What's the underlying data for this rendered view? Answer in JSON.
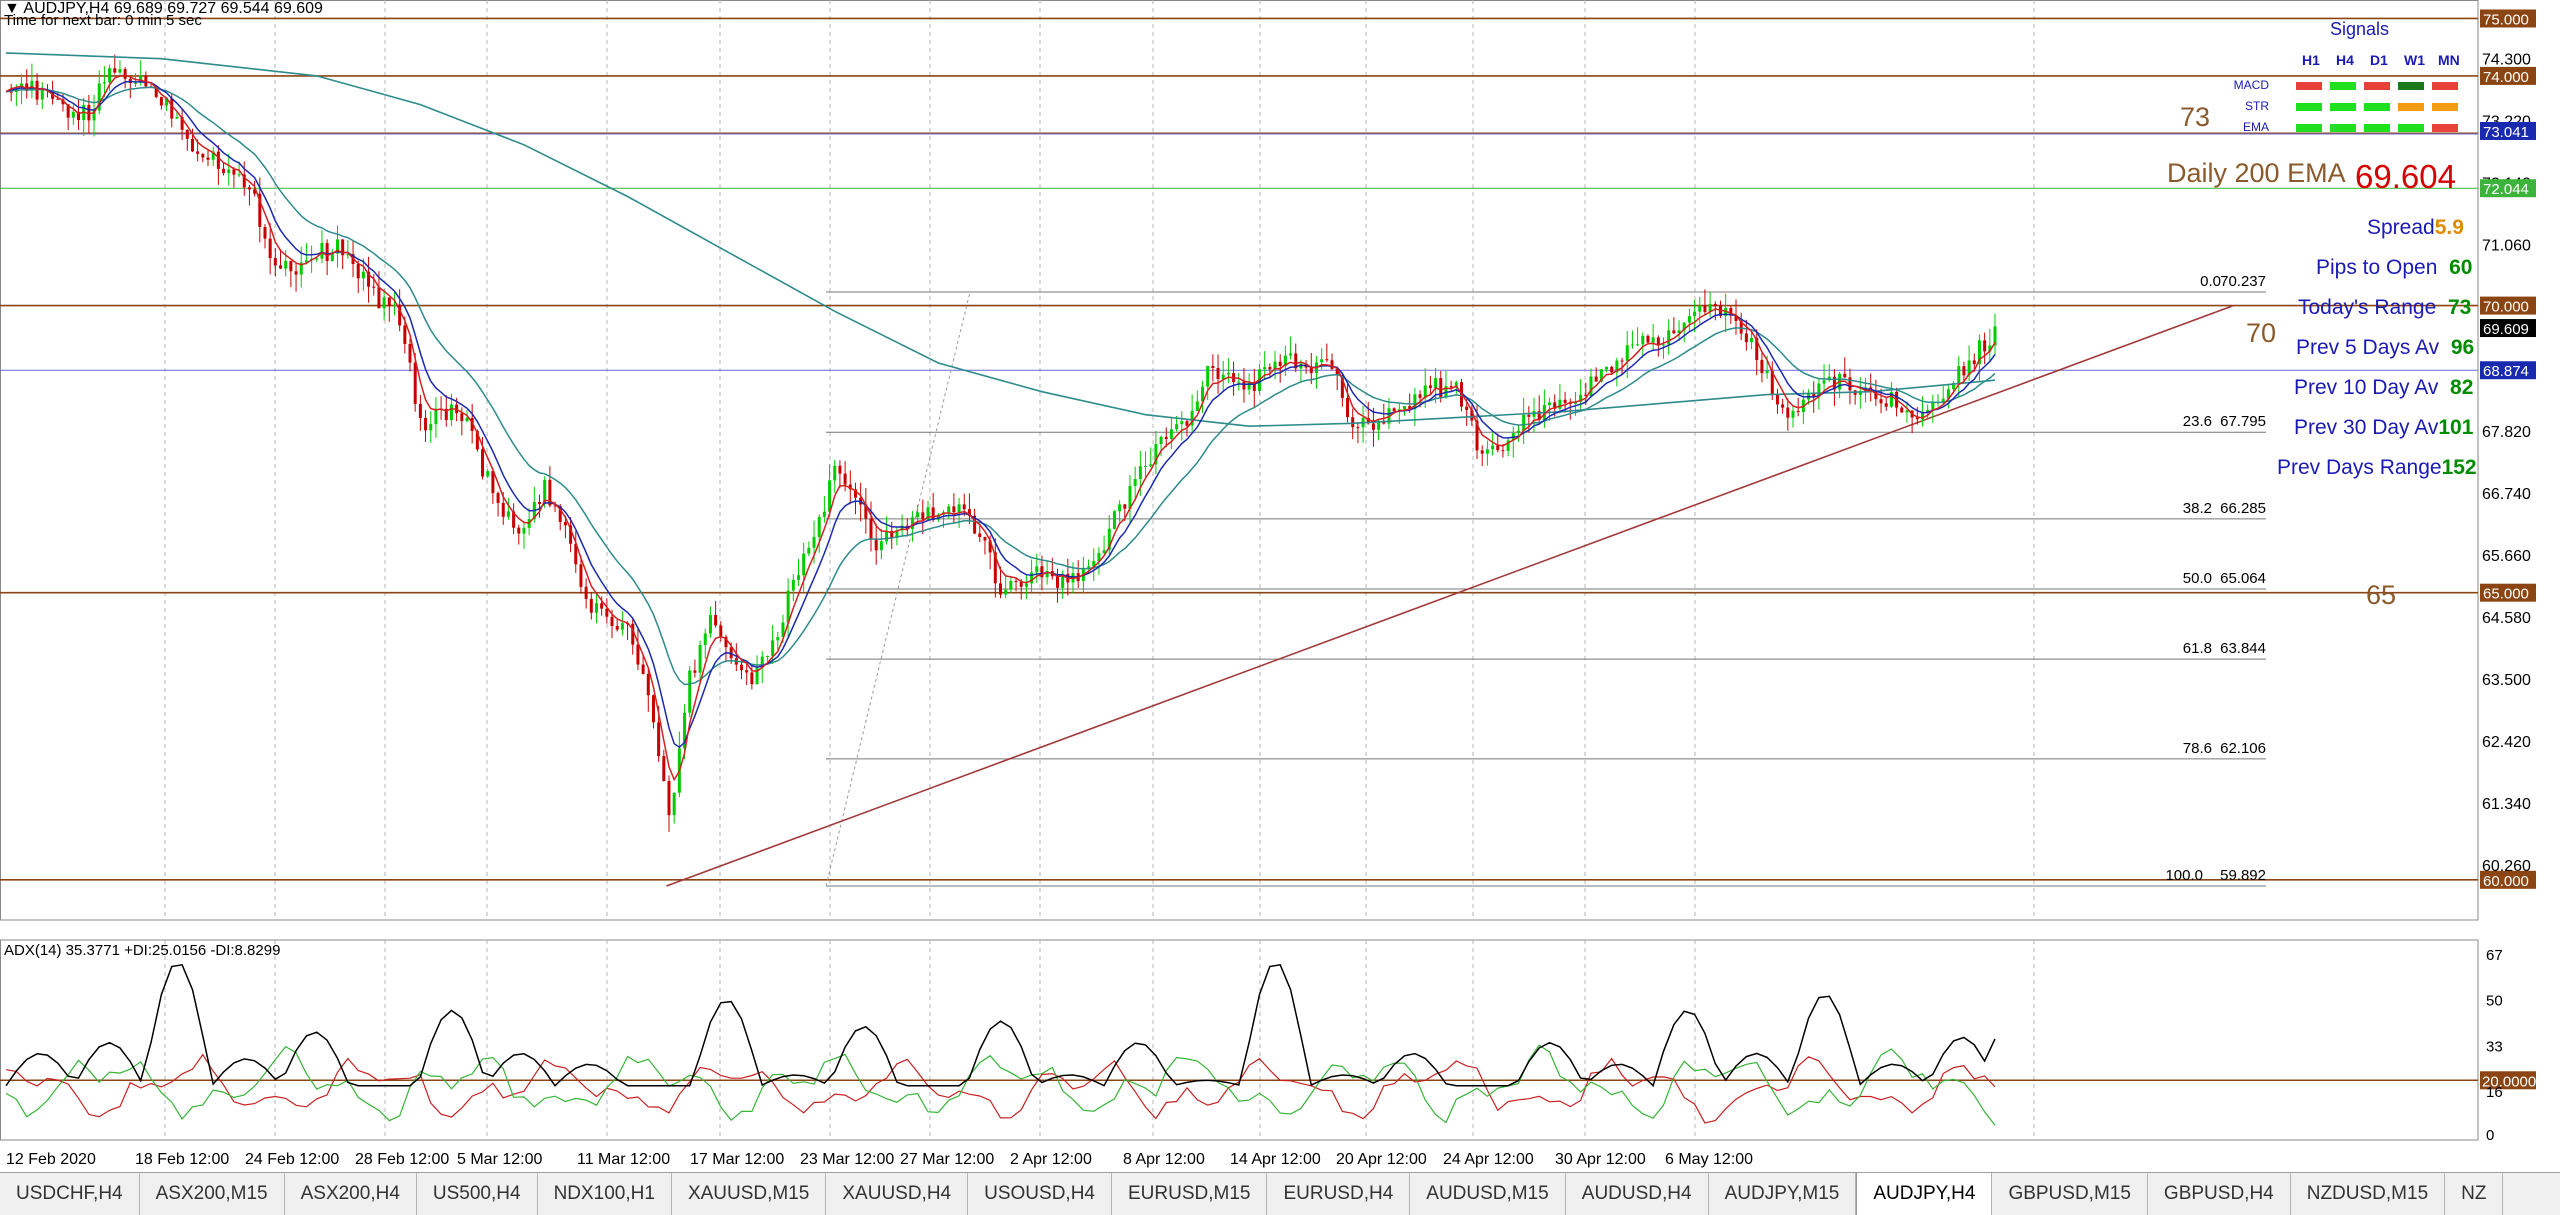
{
  "header": {
    "symbol_line": "AUDJPY,H4  69.689 69.727 69.544 69.609",
    "timer": "Time for next bar: 0 min 5 sec"
  },
  "colors": {
    "level_line": "#8b4513",
    "ema_fast": "#d42020",
    "ema_mid": "#1a2ab0",
    "ema_slow": "#2e8b8b",
    "bull": "#00cc00",
    "bear": "#c80000",
    "adx_line": "#000000",
    "pdi_line": "#36b536",
    "mdi_line": "#c82020",
    "label_blue": "#1a1ab4",
    "label_green": "#008c00",
    "label_orange": "#e08a00",
    "label_red": "#d60000",
    "label_brown": "#8b5a2b"
  },
  "signals": {
    "title": "Signals",
    "columns": [
      "H1",
      "H4",
      "D1",
      "W1",
      "MN"
    ],
    "rows": [
      {
        "name": "MACD",
        "cells": [
          "red",
          "green",
          "red",
          "darkgreen",
          "red"
        ]
      },
      {
        "name": "STR",
        "cells": [
          "green",
          "green",
          "green",
          "orange",
          "orange"
        ]
      },
      {
        "name": "EMA",
        "cells": [
          "green",
          "green",
          "green",
          "green",
          "red"
        ]
      }
    ]
  },
  "info_panel": {
    "level_73": "73",
    "ema_label": "Daily 200 EMA",
    "ema_value": "69.604",
    "spread_label": "Spread",
    "spread_value": "5.9",
    "pips_label": "Pips to Open",
    "pips_value": "60",
    "today_label": "Today's Range",
    "today_value": "73",
    "prev5_label": "Prev 5 Days Av",
    "prev5_value": "96",
    "prev10_label": "Prev 10 Day Av",
    "prev10_value": "82",
    "prev30_label": "Prev 30 Day Av",
    "prev30_value": "101",
    "prevdays_label": "Prev Days Range",
    "prevdays_value": "152",
    "level_70": "70",
    "level_65": "65"
  },
  "indicator": {
    "label": "ADX(14) 35.3771 +DI:25.0156 -DI:8.8299"
  },
  "tabs": [
    "USDCHF,H4",
    "ASX200,M15",
    "ASX200,H4",
    "US500,H4",
    "NDX100,H1",
    "XAUUSD,M15",
    "XAUUSD,H4",
    "USOUSD,H4",
    "EURUSD,M15",
    "EURUSD,H4",
    "AUDUSD,M15",
    "AUDUSD,H4",
    "AUDJPY,M15",
    "AUDJPY,H4",
    "GBPUSD,M15",
    "GBPUSD,H4",
    "NZDUSD,M15",
    "NZ"
  ],
  "active_tab": "AUDJPY,H4",
  "chart_data": [
    {
      "type": "candlestick",
      "symbol": "AUDJPY",
      "timeframe": "H4",
      "ylim": [
        59.3,
        75.2
      ],
      "y_ticks": [
        "74.300",
        "73.220",
        "72.140",
        "71.060",
        "69.980",
        "68.900",
        "67.820",
        "66.740",
        "65.660",
        "64.580",
        "63.500",
        "62.420",
        "61.340",
        "60.260"
      ],
      "x_ticks": [
        "12 Feb 2020",
        "18 Feb 12:00",
        "24 Feb 12:00",
        "28 Feb 12:00",
        "5 Mar 12:00",
        "11 Mar 12:00",
        "17 Mar 12:00",
        "23 Mar 12:00",
        "27 Mar 12:00",
        "2 Apr 12:00",
        "8 Apr 12:00",
        "14 Apr 12:00",
        "20 Apr 12:00",
        "24 Apr 12:00",
        "30 Apr 12:00",
        "6 May 12:00"
      ],
      "price_badges": [
        {
          "label": "75.000",
          "value": 75.0,
          "color": "#8b4513"
        },
        {
          "label": "74.000",
          "value": 74.0,
          "color": "#8b4513"
        },
        {
          "label": "73.041",
          "value": 73.041,
          "color": "#1a2ab0"
        },
        {
          "label": "72.044",
          "value": 72.044,
          "color": "#3cb43c"
        },
        {
          "label": "70.000",
          "value": 70.0,
          "color": "#8b4513"
        },
        {
          "label": "69.609",
          "value": 69.609,
          "color": "#000000"
        },
        {
          "label": "68.874",
          "value": 68.874,
          "color": "#1a2ab0"
        },
        {
          "label": "65.000",
          "value": 65.0,
          "color": "#8b4513"
        },
        {
          "label": "60.000",
          "value": 60.0,
          "color": "#8b4513"
        }
      ],
      "horizontal_levels": [
        75.0,
        74.0,
        73.0,
        70.0,
        65.0,
        60.0
      ],
      "fibonacci": [
        {
          "level": "0.0",
          "price": "70.237",
          "value": 70.237
        },
        {
          "level": "23.6",
          "price": "67.795",
          "value": 67.795
        },
        {
          "level": "38.2",
          "price": "66.285",
          "value": 66.285
        },
        {
          "level": "50.0",
          "price": "65.064",
          "value": 65.064
        },
        {
          "level": "61.8",
          "price": "63.844",
          "value": 63.844
        },
        {
          "level": "78.6",
          "price": "62.106",
          "value": 62.106
        },
        {
          "level": "100.0",
          "price": "59.892",
          "value": 59.892
        }
      ],
      "close_path": [
        [
          0,
          73.9
        ],
        [
          8,
          73.8
        ],
        [
          16,
          73.6
        ],
        [
          24,
          73.4
        ],
        [
          32,
          73.3
        ],
        [
          40,
          74.1
        ],
        [
          48,
          74.0
        ],
        [
          56,
          73.8
        ],
        [
          64,
          73.4
        ],
        [
          72,
          72.8
        ],
        [
          80,
          72.6
        ],
        [
          88,
          72.3
        ],
        [
          96,
          71.8
        ],
        [
          104,
          70.7
        ],
        [
          112,
          70.7
        ],
        [
          120,
          70.9
        ],
        [
          128,
          71.0
        ],
        [
          136,
          70.6
        ],
        [
          144,
          70.1
        ],
        [
          152,
          69.8
        ],
        [
          160,
          67.9
        ],
        [
          168,
          68.2
        ],
        [
          176,
          68.1
        ],
        [
          184,
          67.2
        ],
        [
          192,
          66.3
        ],
        [
          200,
          66.1
        ],
        [
          208,
          66.8
        ],
        [
          216,
          66.0
        ],
        [
          224,
          64.9
        ],
        [
          232,
          64.5
        ],
        [
          240,
          64.4
        ],
        [
          248,
          63.2
        ],
        [
          256,
          61.0
        ],
        [
          264,
          63.5
        ],
        [
          272,
          64.6
        ],
        [
          280,
          63.9
        ],
        [
          288,
          63.5
        ],
        [
          296,
          64.0
        ],
        [
          304,
          65.2
        ],
        [
          312,
          66.0
        ],
        [
          320,
          67.1
        ],
        [
          328,
          66.6
        ],
        [
          336,
          65.8
        ],
        [
          344,
          66.1
        ],
        [
          352,
          66.3
        ],
        [
          360,
          66.4
        ],
        [
          368,
          66.4
        ],
        [
          376,
          66.0
        ],
        [
          384,
          65.1
        ],
        [
          392,
          65.2
        ],
        [
          400,
          65.4
        ],
        [
          408,
          65.2
        ],
        [
          416,
          65.3
        ],
        [
          424,
          65.9
        ],
        [
          432,
          66.6
        ],
        [
          440,
          67.3
        ],
        [
          448,
          67.7
        ],
        [
          456,
          68.0
        ],
        [
          464,
          68.8
        ],
        [
          472,
          68.7
        ],
        [
          480,
          68.6
        ],
        [
          488,
          68.9
        ],
        [
          496,
          69.0
        ],
        [
          504,
          68.9
        ],
        [
          512,
          68.9
        ],
        [
          520,
          67.9
        ],
        [
          528,
          68.0
        ],
        [
          536,
          68.2
        ],
        [
          544,
          68.4
        ],
        [
          552,
          68.6
        ],
        [
          560,
          68.5
        ],
        [
          568,
          67.6
        ],
        [
          576,
          67.5
        ],
        [
          584,
          67.9
        ],
        [
          592,
          68.1
        ],
        [
          600,
          68.3
        ],
        [
          608,
          68.4
        ],
        [
          616,
          68.9
        ],
        [
          624,
          69.1
        ],
        [
          632,
          69.3
        ],
        [
          640,
          69.4
        ],
        [
          648,
          69.7
        ],
        [
          656,
          69.9
        ],
        [
          664,
          69.9
        ],
        [
          672,
          69.5
        ],
        [
          680,
          68.7
        ],
        [
          688,
          68.1
        ],
        [
          696,
          68.3
        ],
        [
          704,
          68.7
        ],
        [
          712,
          68.6
        ],
        [
          720,
          68.4
        ],
        [
          728,
          68.4
        ],
        [
          736,
          67.9
        ],
        [
          744,
          68.2
        ],
        [
          752,
          68.7
        ],
        [
          760,
          69.1
        ],
        [
          768,
          69.6
        ]
      ],
      "ema_200_path": [
        [
          0,
          74.4
        ],
        [
          60,
          74.3
        ],
        [
          120,
          74.0
        ],
        [
          160,
          73.5
        ],
        [
          200,
          72.8
        ],
        [
          240,
          71.9
        ],
        [
          280,
          70.9
        ],
        [
          320,
          69.9
        ],
        [
          360,
          69.0
        ],
        [
          400,
          68.5
        ],
        [
          440,
          68.1
        ],
        [
          480,
          67.9
        ],
        [
          520,
          67.95
        ],
        [
          560,
          68.05
        ],
        [
          600,
          68.15
        ],
        [
          640,
          68.3
        ],
        [
          680,
          68.45
        ],
        [
          720,
          68.5
        ],
        [
          768,
          68.7
        ]
      ],
      "trendline": {
        "from": [
          255,
          59.892
        ],
        "to": [
          860,
          70.0
        ]
      },
      "indicator_panel": {
        "name": "ADX(14)",
        "adx": 35.3771,
        "plus_di": 25.0156,
        "minus_di": 8.8299,
        "level": "20.0000",
        "level_value": 20,
        "y_ticks": [
          "67",
          "50",
          "33",
          "16",
          "0"
        ]
      }
    }
  ]
}
